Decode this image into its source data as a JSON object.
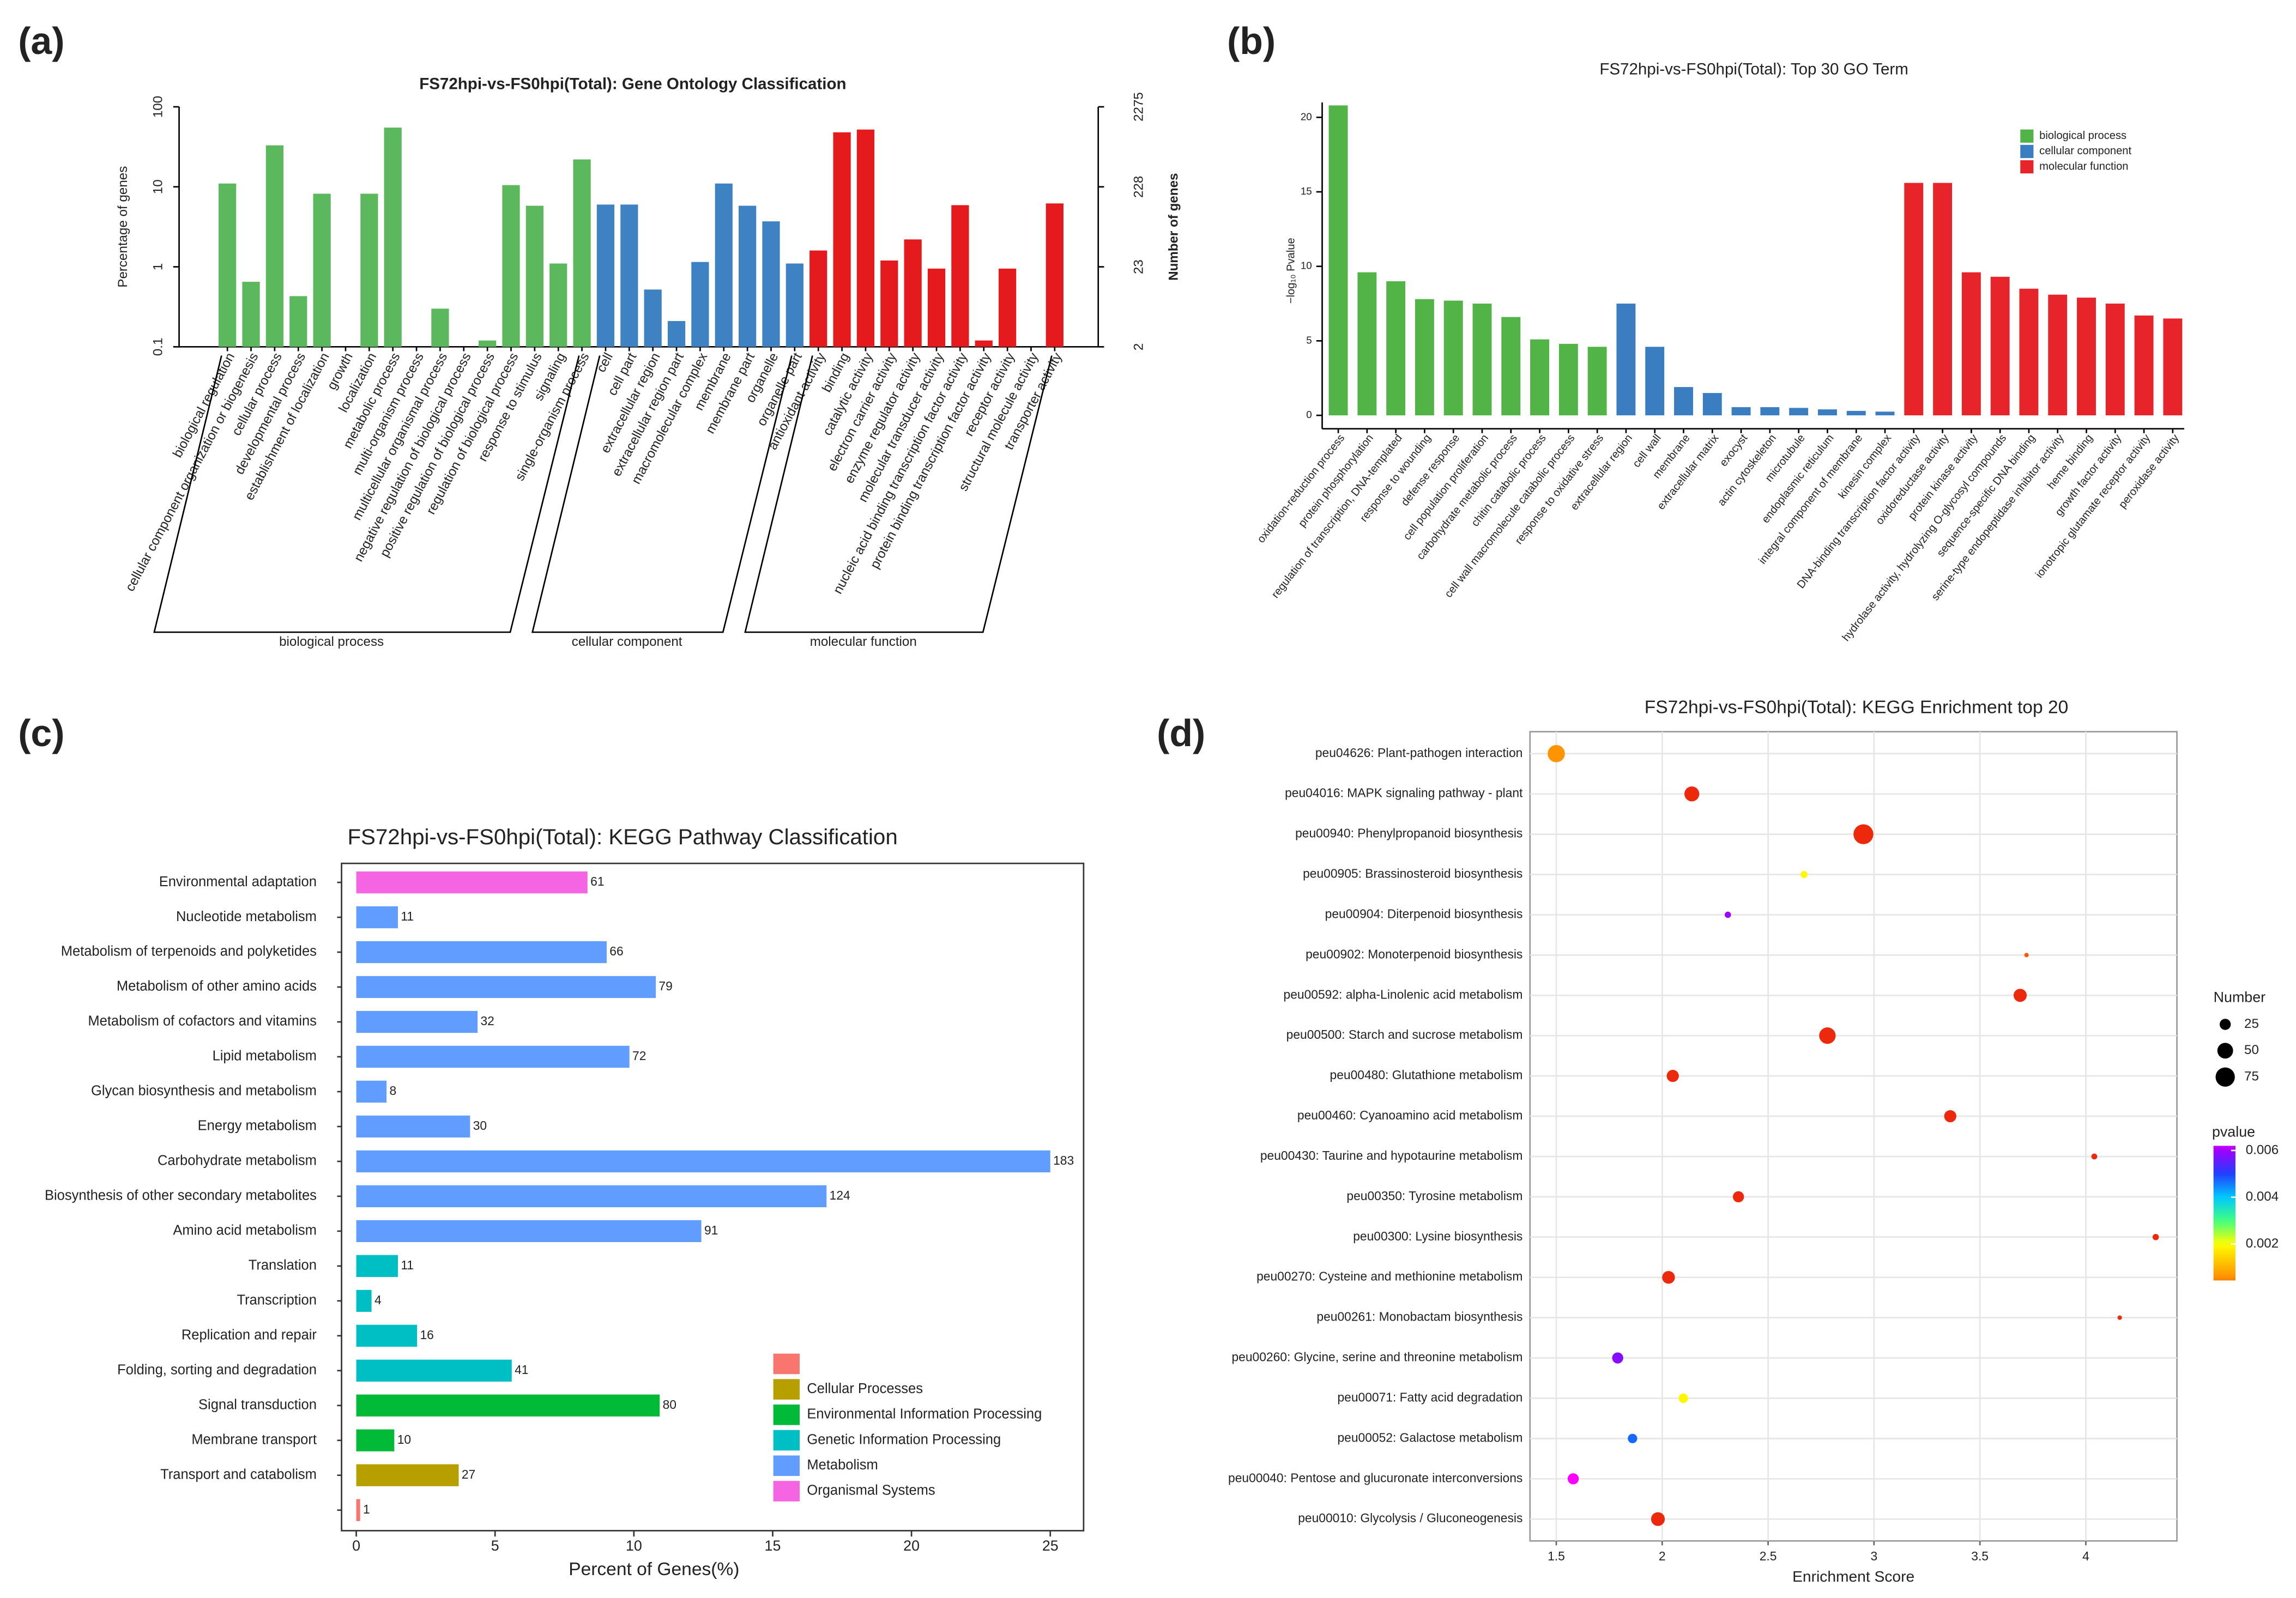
{
  "chart_data": [
    {
      "type": "bar",
      "panel": "(a)",
      "title": "FS72hpi-vs-FS0hpi(Total): Gene Ontology Classification",
      "y_label": "Percentage of genes",
      "y2_label": "Number of genes",
      "log_scale": true,
      "group_labels": "brackets",
      "ylim": [
        0.1,
        100
      ],
      "yticks": [
        0.1,
        1,
        10,
        100
      ],
      "y2lim": [
        2.275,
        2275
      ],
      "y2ticks": [
        {
          "value": 2.275,
          "label": "2"
        },
        {
          "value": 22.75,
          "label": "23"
        },
        {
          "value": 227.5,
          "label": "228"
        },
        2275
      ],
      "series": [
        {
          "name": "biological process",
          "color": "#5cb85c",
          "categories": [
            "biological regulation",
            "cellular component organization or biogenesis",
            "cellular process",
            "developmental process",
            "establishment of localization",
            "growth",
            "localization",
            "metabolic process",
            "multi-organism process",
            "multicellular organismal process",
            "negative regulation of biological process",
            "positive regulation of biological process",
            "regulation of biological process",
            "response to stimulus",
            "signaling",
            "single-organism process"
          ],
          "values": [
            11,
            0.65,
            33,
            0.43,
            8.2,
            null,
            8.2,
            55,
            null,
            0.3,
            null,
            0.12,
            10.5,
            5.8,
            1.1,
            22
          ]
        },
        {
          "name": "cellular component",
          "color": "#3e82c4",
          "categories": [
            "cell",
            "cell part",
            "extracellular region",
            "extracellular region part",
            "macromolecular complex",
            "membrane",
            "membrane part",
            "organelle",
            "organelle part"
          ],
          "values": [
            6,
            6,
            0.52,
            0.21,
            1.15,
            11,
            5.8,
            3.7,
            1.1
          ]
        },
        {
          "name": "molecular function",
          "color": "#e41a1c",
          "categories": [
            "antioxidant activity",
            "binding",
            "catalytic activity",
            "electron carrier activity",
            "enzyme regulator activity",
            "molecular transducer activity",
            "nucleic acid binding transcription factor activity",
            "protein binding transcription factor activity",
            "receptor activity",
            "structural molecule activity",
            "transporter activity"
          ],
          "values": [
            1.6,
            48,
            52,
            1.2,
            2.2,
            0.95,
            5.9,
            0.12,
            0.95,
            null,
            6.2
          ]
        }
      ]
    },
    {
      "type": "bar",
      "panel": "(b)",
      "title": "FS72hpi-vs-FS0hpi(Total): Top 30 GO Term",
      "y_label": "−log₁₀ Pvalue",
      "legend": "top-right",
      "label_color": "series",
      "ylim": [
        -0.9,
        21
      ],
      "yticks": [
        0,
        5,
        10,
        15,
        20
      ],
      "series": [
        {
          "name": "biological process",
          "color": "#52b447",
          "categories": [
            "oxidation-reduction process",
            "protein phosphorylation",
            "regulation of transcription, DNA-templated",
            "response to wounding",
            "defense response",
            "cell population proliferation",
            "carbohydrate metabolic process",
            "chitin catabolic process",
            "cell wall macromolecule catabolic process",
            "response to oxidative stress"
          ],
          "values": [
            20.8,
            9.6,
            9.0,
            7.8,
            7.7,
            7.5,
            6.6,
            5.1,
            4.8,
            4.6
          ]
        },
        {
          "name": "cellular component",
          "color": "#3a7dc0",
          "categories": [
            "extracellular region",
            "cell wall",
            "membrane",
            "extracellular matrix",
            "exocyst",
            "actin cytoskeleton",
            "microtubule",
            "endoplasmic reticulum",
            "integral component of membrane",
            "kinesin complex"
          ],
          "values": [
            7.5,
            4.6,
            1.9,
            1.5,
            0.55,
            0.55,
            0.5,
            0.4,
            0.3,
            0.25
          ]
        },
        {
          "name": "molecular function",
          "color": "#e8242b",
          "categories": [
            "DNA-binding transcription factor activity",
            "oxidoreductase activity",
            "protein kinase activity",
            "hydrolase activity, hydrolyzing O-glycosyl compounds",
            "sequence-specific DNA binding",
            "serine-type endopeptidase inhibitor activity",
            "heme binding",
            "growth factor activity",
            "ionotropic glutamate receptor activity",
            "peroxidase activity"
          ],
          "values": [
            15.6,
            15.6,
            9.6,
            9.3,
            8.5,
            8.1,
            7.9,
            7.5,
            6.7,
            6.5
          ]
        }
      ]
    },
    {
      "type": "hbar",
      "panel": "(c)",
      "title": "FS72hpi-vs-FS0hpi(Total): KEGG Pathway Classification",
      "x_label": "Percent of Genes(%)",
      "legend": "bottom-right",
      "categories": [
        "Environmental adaptation",
        "Nucleotide metabolism",
        "Metabolism of terpenoids and polyketides",
        "Metabolism of other amino acids",
        "Metabolism of cofactors and vitamins",
        "Lipid metabolism",
        "Glycan biosynthesis and metabolism",
        "Energy metabolism",
        "Carbohydrate metabolism",
        "Biosynthesis of other secondary metabolites",
        "Amino acid metabolism",
        "Translation",
        "Transcription",
        "Replication and repair",
        "Folding, sorting and degradation",
        "Signal transduction",
        "Membrane transport",
        "Transport and catabolism",
        null
      ],
      "values": [
        8.33,
        1.5,
        9.02,
        10.79,
        4.37,
        9.84,
        1.09,
        4.1,
        25.0,
        16.94,
        12.43,
        1.5,
        0.55,
        2.19,
        5.6,
        10.93,
        1.37,
        3.69,
        0.14
      ],
      "gene_counts": [
        61,
        11,
        66,
        79,
        32,
        72,
        8,
        30,
        183,
        124,
        91,
        11,
        4,
        16,
        41,
        80,
        10,
        27,
        1
      ],
      "class_index": [
        5,
        4,
        4,
        4,
        4,
        4,
        4,
        4,
        4,
        4,
        4,
        3,
        3,
        3,
        3,
        2,
        2,
        1,
        0
      ],
      "classes": [
        {
          "name": null,
          "color": "#f8766d"
        },
        {
          "name": "Cellular Processes",
          "color": "#b79f00"
        },
        {
          "name": "Environmental Information Processing",
          "color": "#00ba38"
        },
        {
          "name": "Genetic Information Processing",
          "color": "#00bfc4"
        },
        {
          "name": "Metabolism",
          "color": "#619cff"
        },
        {
          "name": "Organismal Systems",
          "color": "#f564e3"
        }
      ],
      "xlim": [
        -0.53,
        26.2
      ],
      "xticks": [
        0,
        5,
        10,
        15,
        20,
        25
      ]
    },
    {
      "type": "scatter",
      "panel": "(d)",
      "title": "FS72hpi-vs-FS0hpi(Total): KEGG Enrichment top 20",
      "x_label": "Enrichment Score",
      "grid": true,
      "categories": [
        "peu04626: Plant-pathogen interaction",
        "peu04016: MAPK signaling pathway - plant",
        "peu00940: Phenylpropanoid biosynthesis",
        "peu00905: Brassinosteroid biosynthesis",
        "peu00904: Diterpenoid biosynthesis",
        "peu00902: Monoterpenoid biosynthesis",
        "peu00592: alpha-Linolenic acid metabolism",
        "peu00500: Starch and sucrose metabolism",
        "peu00480: Glutathione metabolism",
        "peu00460: Cyanoamino acid metabolism",
        "peu00430: Taurine and hypotaurine metabolism",
        "peu00350: Tyrosine metabolism",
        "peu00300: Lysine biosynthesis",
        "peu00270: Cysteine and methionine metabolism",
        "peu00261: Monobactam biosynthesis",
        "peu00260: Glycine, serine and threonine metabolism",
        "peu00071: Fatty acid degradation",
        "peu00052: Galactose metabolism",
        "peu00040: Pentose and glucuronate interconversions",
        "peu00010: Glycolysis / Gluconeogenesis"
      ],
      "x": [
        1.5,
        2.14,
        2.95,
        2.67,
        2.31,
        3.72,
        3.69,
        2.78,
        2.05,
        3.36,
        4.04,
        2.36,
        4.33,
        2.03,
        4.16,
        1.79,
        2.1,
        1.86,
        1.58,
        1.98
      ],
      "sizes": [
        60,
        45,
        80,
        10,
        8,
        4,
        35,
        55,
        30,
        30,
        7,
        25,
        8,
        33,
        4,
        25,
        18,
        18,
        25,
        38
      ],
      "pvalues": [
        0.0006,
        0.0001,
        0.0001,
        0.0019,
        0.006,
        0.0003,
        0.0001,
        0.0001,
        0.0001,
        0.0001,
        0.0001,
        0.0001,
        0.0001,
        0.0001,
        0.0001,
        0.0058,
        0.0019,
        0.0047,
        0.0065,
        0.0001
      ],
      "xlim": [
        1.376,
        4.43
      ],
      "xticks": [
        1.5,
        2.0,
        2.5,
        3.0,
        3.5,
        4.0
      ],
      "size_legend": {
        "title": "Number",
        "values": [
          25,
          50,
          75
        ]
      },
      "color_legend": {
        "title": "pvalue",
        "clim": [
          0.00044,
          0.0062
        ],
        "ticks": [
          0.002,
          0.004,
          0.006
        ]
      },
      "colorscale": [
        [
          0,
          "#e81010"
        ],
        [
          0.0005,
          "#ff8c00"
        ],
        [
          0.002,
          "#ffff00"
        ],
        [
          0.003,
          "#40ff80"
        ],
        [
          0.004,
          "#00c8ff"
        ],
        [
          0.005,
          "#2040ff"
        ],
        [
          0.006,
          "#a000ff"
        ],
        [
          0.0065,
          "#ff00ff"
        ]
      ]
    }
  ]
}
